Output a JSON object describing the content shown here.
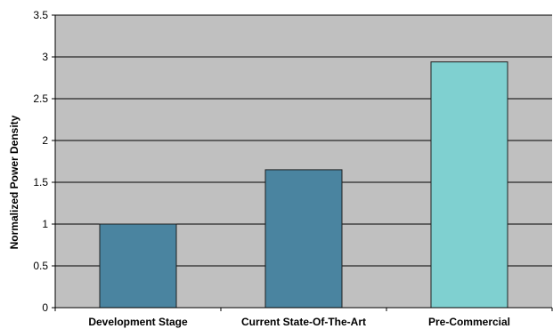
{
  "chart_data": {
    "type": "bar",
    "title": "",
    "xlabel": "",
    "ylabel": "Normalized Power Density",
    "categories": [
      "Development Stage",
      "Current State-Of-The-Art",
      "Pre-Commercial"
    ],
    "values": [
      1.0,
      1.65,
      2.94
    ],
    "ylim": [
      0,
      3.5
    ],
    "yticks": [
      0,
      0.5,
      1,
      1.5,
      2,
      2.5,
      3,
      3.5
    ],
    "ytick_labels": [
      "0",
      "0.5",
      "1",
      "1.5",
      "2",
      "2.5",
      "3",
      "3.5"
    ],
    "grid": true,
    "legend": "none",
    "colors": {
      "plot_background": "#c0c0c0",
      "gridline": "#000000",
      "bars": [
        "#4a84a0",
        "#4a84a0",
        "#7fd0d0"
      ],
      "bar_outline": "#1f1f1f"
    }
  }
}
